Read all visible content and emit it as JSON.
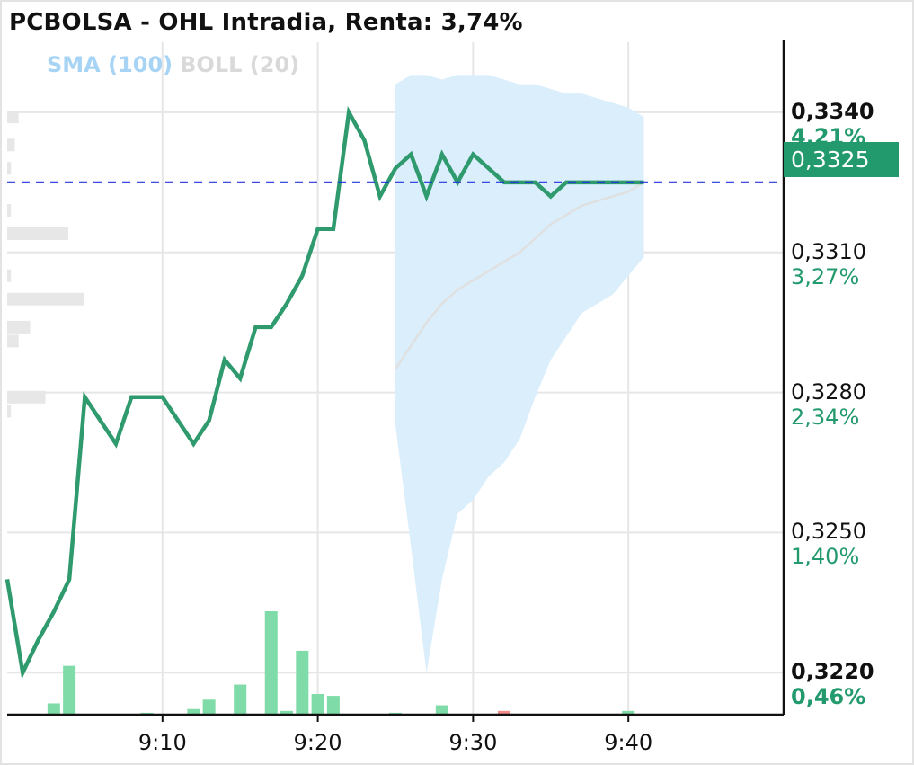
{
  "title": "PCBOLSA - OHL Intradia, Renta: 3,74%",
  "legend": {
    "sma": "SMA (100)",
    "boll": "BOLL (20)"
  },
  "current_price_label": "0,3325",
  "y_axis_labels": [
    {
      "price": "0,3340",
      "change": "4,21%",
      "bold": true
    },
    {
      "price": "0,3310",
      "change": "3,27%",
      "bold": false
    },
    {
      "price": "0,3280",
      "change": "2,34%",
      "bold": false
    },
    {
      "price": "0,3250",
      "change": "1,40%",
      "bold": false
    },
    {
      "price": "0,3220",
      "change": "0,46%",
      "bold": true
    }
  ],
  "x_axis_labels": [
    "9:10",
    "9:20",
    "9:30",
    "9:40"
  ],
  "colors": {
    "price_line": "#2f9a6d",
    "volume_up": "#7fdca8",
    "volume_down": "#f28b8b",
    "bollinger_band": "#daeefc",
    "sma_line": "#e0e0e0",
    "current_price_line": "#2233dd",
    "grid": "#e6e6e6"
  },
  "chart_data": {
    "type": "line",
    "title": "PCBOLSA - OHL Intradia, Renta: 3,74%",
    "x_unit": "minutes",
    "xlim": [
      "9:00",
      "9:50"
    ],
    "ylim": [
      0.3211,
      0.3348
    ],
    "current_price": 0.3325,
    "price_series": {
      "name": "OHL",
      "x": [
        "9:00",
        "9:01",
        "9:02",
        "9:03",
        "9:04",
        "9:05",
        "9:06",
        "9:07",
        "9:08",
        "9:09",
        "9:10",
        "9:11",
        "9:12",
        "9:13",
        "9:14",
        "9:15",
        "9:16",
        "9:17",
        "9:18",
        "9:19",
        "9:20",
        "9:21",
        "9:22",
        "9:23",
        "9:24",
        "9:25",
        "9:26",
        "9:27",
        "9:28",
        "9:29",
        "9:30",
        "9:31",
        "9:32",
        "9:33",
        "9:34",
        "9:35",
        "9:36",
        "9:37",
        "9:38",
        "9:39",
        "9:40",
        "9:41"
      ],
      "y": [
        0.324,
        0.322,
        0.3227,
        0.3233,
        0.324,
        0.3279,
        0.3274,
        0.3269,
        0.3279,
        0.3279,
        0.3279,
        0.3274,
        0.3269,
        0.3274,
        0.3287,
        0.3283,
        0.3294,
        0.3294,
        0.3299,
        0.3305,
        0.3315,
        0.3315,
        0.334,
        0.3334,
        0.3322,
        0.3328,
        0.3331,
        0.3322,
        0.3331,
        0.3325,
        0.3331,
        0.3328,
        0.3325,
        0.3325,
        0.3325,
        0.3322,
        0.3325,
        0.3325,
        0.3325,
        0.3325,
        0.3325,
        0.3325
      ]
    },
    "sma_series": {
      "name": "SMA (100)",
      "x": [
        "9:25",
        "9:26",
        "9:27",
        "9:28",
        "9:29",
        "9:30",
        "9:31",
        "9:32",
        "9:33",
        "9:34",
        "9:35",
        "9:36",
        "9:37",
        "9:38",
        "9:39",
        "9:40",
        "9:41"
      ],
      "y": [
        0.3285,
        0.329,
        0.3295,
        0.3299,
        0.3302,
        0.3304,
        0.3306,
        0.3308,
        0.331,
        0.3313,
        0.3316,
        0.3318,
        0.332,
        0.3321,
        0.3322,
        0.3323,
        0.3325
      ]
    },
    "bollinger": {
      "name": "BOLL (20)",
      "x": [
        "9:25",
        "9:26",
        "9:27",
        "9:28",
        "9:29",
        "9:30",
        "9:31",
        "9:32",
        "9:33",
        "9:34",
        "9:35",
        "9:36",
        "9:37",
        "9:38",
        "9:39",
        "9:40",
        "9:41"
      ],
      "upper": [
        0.3346,
        0.3348,
        0.3348,
        0.3347,
        0.3348,
        0.3348,
        0.3348,
        0.3347,
        0.3346,
        0.3346,
        0.3345,
        0.3344,
        0.3344,
        0.3343,
        0.3342,
        0.3341,
        0.3339
      ],
      "lower": [
        0.3273,
        0.3247,
        0.322,
        0.324,
        0.3254,
        0.3257,
        0.3262,
        0.3265,
        0.327,
        0.3279,
        0.3287,
        0.3292,
        0.3297,
        0.3299,
        0.3301,
        0.3305,
        0.3309
      ]
    },
    "volume": [
      {
        "x": "9:03",
        "v": 6,
        "dir": "up"
      },
      {
        "x": "9:04",
        "v": 26,
        "dir": "up"
      },
      {
        "x": "9:09",
        "v": 1,
        "dir": "up"
      },
      {
        "x": "9:12",
        "v": 3,
        "dir": "up"
      },
      {
        "x": "9:13",
        "v": 8,
        "dir": "up"
      },
      {
        "x": "9:15",
        "v": 16,
        "dir": "up"
      },
      {
        "x": "9:17",
        "v": 55,
        "dir": "up"
      },
      {
        "x": "9:18",
        "v": 2,
        "dir": "up"
      },
      {
        "x": "9:19",
        "v": 34,
        "dir": "up"
      },
      {
        "x": "9:20",
        "v": 11,
        "dir": "up"
      },
      {
        "x": "9:21",
        "v": 10,
        "dir": "up"
      },
      {
        "x": "9:25",
        "v": 1,
        "dir": "up"
      },
      {
        "x": "9:28",
        "v": 5,
        "dir": "up"
      },
      {
        "x": "9:32",
        "v": 2,
        "dir": "down"
      },
      {
        "x": "9:40",
        "v": 2,
        "dir": "up"
      }
    ],
    "volume_profile": [
      {
        "price": 0.3339,
        "v": 3
      },
      {
        "price": 0.3333,
        "v": 2
      },
      {
        "price": 0.3328,
        "v": 1
      },
      {
        "price": 0.3319,
        "v": 1
      },
      {
        "price": 0.3314,
        "v": 16
      },
      {
        "price": 0.3305,
        "v": 1
      },
      {
        "price": 0.33,
        "v": 20
      },
      {
        "price": 0.3294,
        "v": 6
      },
      {
        "price": 0.3291,
        "v": 3
      },
      {
        "price": 0.3279,
        "v": 10
      },
      {
        "price": 0.3276,
        "v": 1
      }
    ]
  }
}
